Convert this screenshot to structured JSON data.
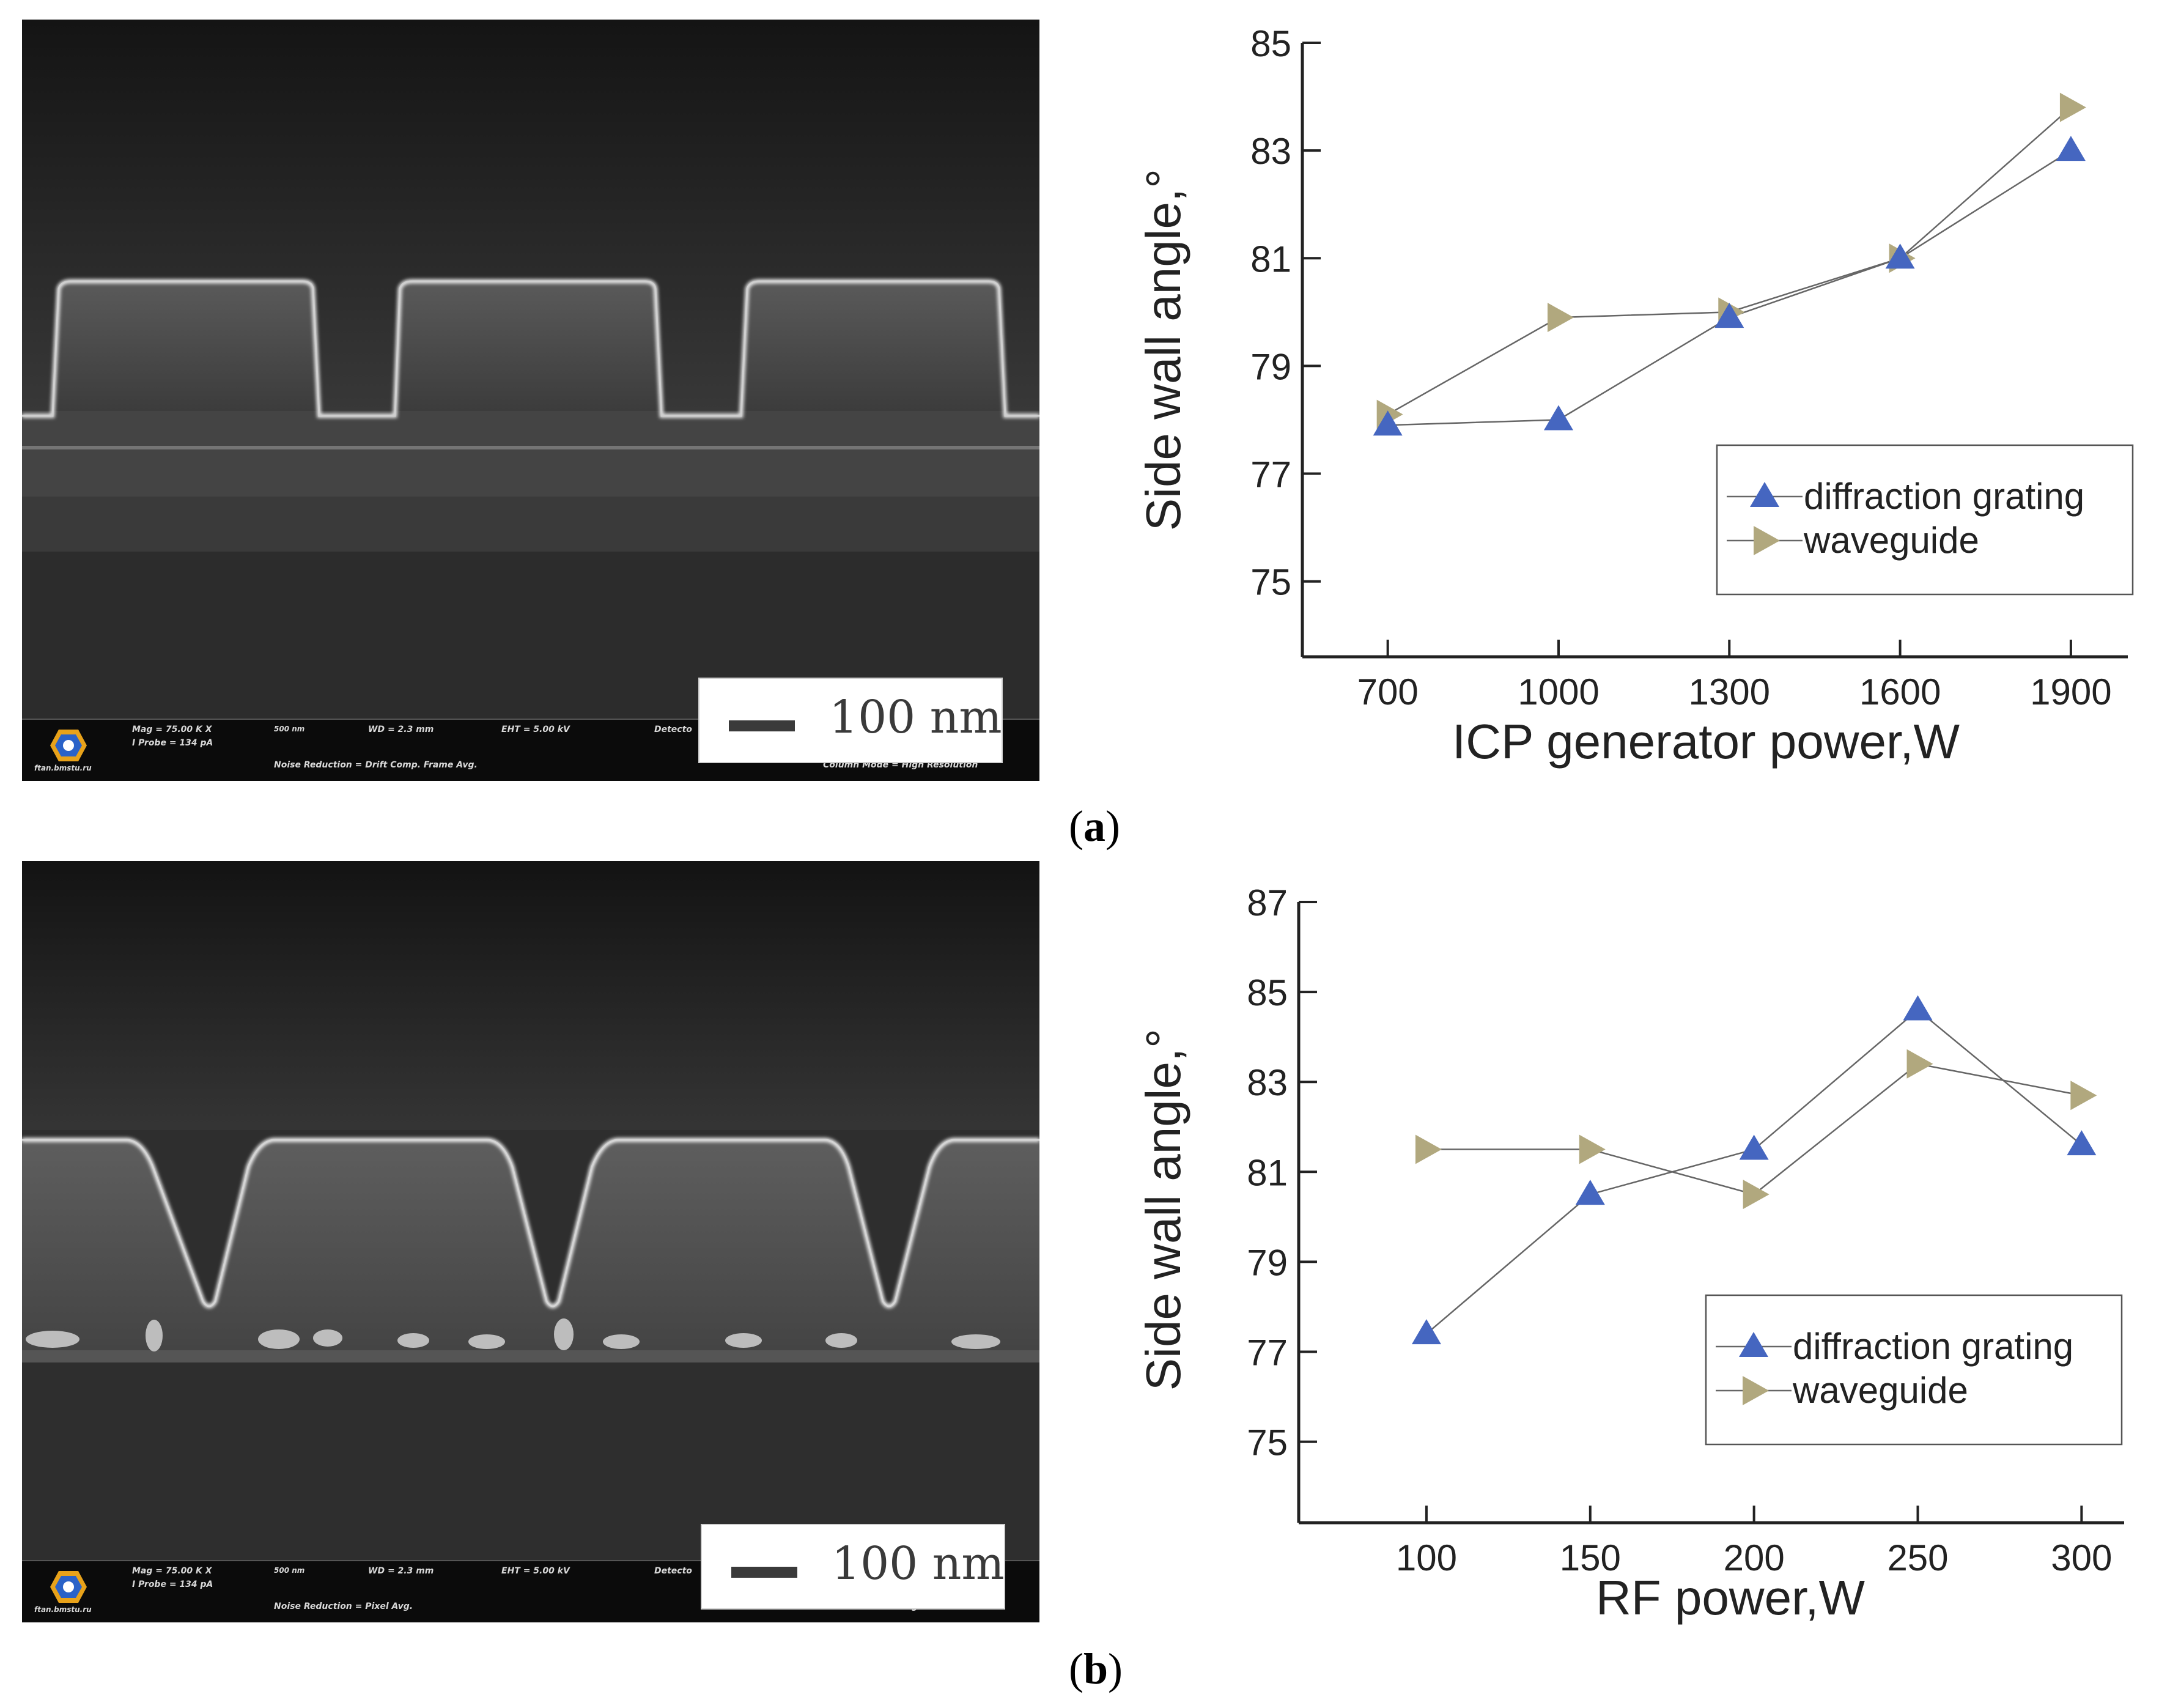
{
  "panels": [
    {
      "id": "a",
      "label_open": "(",
      "label_letter": "a",
      "label_close": ")",
      "sem": {
        "scale_label": "100 nm",
        "mag": "Mag =  75.00 K X",
        "probe": "I Probe =   134 pA",
        "width": "500 nm",
        "wd": "WD =  2.3 mm",
        "eht": "EHT =  5.00 kV",
        "detector": "Detecto",
        "noise": "Noise Reduction = Drift Comp. Frame Avg.",
        "column": "Column Mode = High Resolution",
        "site": "ftan.bmstu.ru"
      }
    },
    {
      "id": "b",
      "label_open": "(",
      "label_letter": "b",
      "label_close": ")",
      "sem": {
        "scale_label": "100 nm",
        "mag": "Mag =  75.00 K X",
        "probe": "I Probe =   134 pA",
        "width": "500 nm",
        "wd": "WD =  2.3 mm",
        "eht": "EHT =  5.00 kV",
        "detector": "Detecto",
        "noise": "Noise Reduction = Pixel Avg.",
        "column": "Column Mode = High Resolution",
        "site": "ftan.bmstu.ru"
      }
    }
  ],
  "colors": {
    "diffraction_grating": "#4566c0",
    "waveguide": "#b1a87e",
    "line": "#666666",
    "axis": "#222222"
  },
  "chart_data": [
    {
      "type": "line",
      "title": "",
      "xlabel": "ICP generator power,W",
      "ylabel": "Side wall angle,°",
      "x": [
        700,
        1000,
        1300,
        1600,
        1900
      ],
      "xticks": [
        "700",
        "1000",
        "1300",
        "1600",
        "1900"
      ],
      "xlim": [
        550,
        2000
      ],
      "yticks": [
        "75",
        "77",
        "79",
        "81",
        "83",
        "85"
      ],
      "ylim": [
        73.6,
        85
      ],
      "grid": false,
      "legend": "bottom-right",
      "series": [
        {
          "name": "diffraction grating",
          "marker": "triangle-up",
          "x": [
            700,
            1000,
            1300,
            1600,
            1900
          ],
          "values": [
            77.9,
            78.0,
            79.9,
            81.0,
            83.0
          ]
        },
        {
          "name": "waveguide",
          "marker": "triangle-right",
          "x": [
            700,
            1000,
            1300,
            1600,
            1900
          ],
          "values": [
            78.1,
            79.9,
            80.0,
            81.0,
            83.8
          ]
        }
      ]
    },
    {
      "type": "line",
      "title": "",
      "xlabel": "RF power,W",
      "ylabel": "Side wall angle,°",
      "x": [
        100,
        150,
        200,
        250,
        300
      ],
      "xticks": [
        "100",
        "150",
        "200",
        "250",
        "300"
      ],
      "xlim": [
        61,
        313
      ],
      "yticks": [
        "75",
        "77",
        "79",
        "81",
        "83",
        "85",
        "87"
      ],
      "ylim": [
        73.2,
        87
      ],
      "grid": false,
      "legend": "bottom-right",
      "series": [
        {
          "name": "diffraction grating",
          "marker": "triangle-up",
          "x": [
            100,
            150,
            200,
            250,
            300
          ],
          "values": [
            77.4,
            80.5,
            81.5,
            84.6,
            81.6
          ]
        },
        {
          "name": "waveguide",
          "marker": "triangle-right",
          "x": [
            100,
            150,
            200,
            250,
            300
          ],
          "values": [
            81.5,
            81.5,
            80.5,
            83.4,
            82.7
          ]
        }
      ]
    }
  ]
}
